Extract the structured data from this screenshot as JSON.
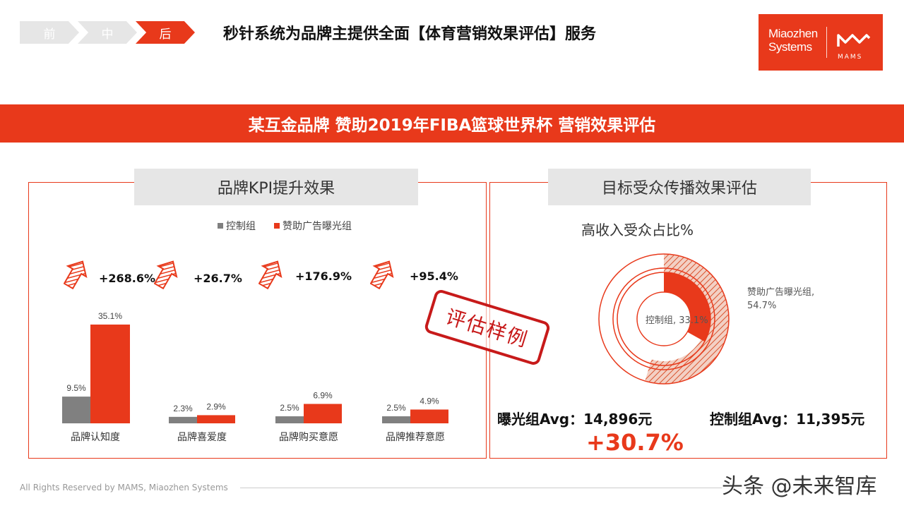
{
  "breadcrumb": [
    "前",
    "中",
    "后"
  ],
  "page_title": "秒针系统为品牌主提供全面【体育营销效果评估】服务",
  "logo": {
    "line1": "Miaozhen",
    "line2": "Systems",
    "mark": "MAMS"
  },
  "banner": "某互金品牌  赞助2019年FIBA篮球世界杯  营销效果评估",
  "left_panel": {
    "title": "品牌KPI提升效果"
  },
  "right_panel": {
    "title": "目标受众传播效果评估"
  },
  "stamp": "评估样例",
  "colors": {
    "accent": "#e8391b",
    "control": "#808080"
  },
  "chart_data": [
    {
      "type": "bar",
      "categories": [
        "品牌认知度",
        "品牌喜爱度",
        "品牌购买意愿",
        "品牌推荐意愿"
      ],
      "series": [
        {
          "name": "控制组",
          "values": [
            9.5,
            2.3,
            2.5,
            2.5
          ],
          "labels": [
            "9.5%",
            "2.3%",
            "2.5%",
            "2.5%"
          ],
          "color": "#808080"
        },
        {
          "name": "赞助广告曝光组",
          "values": [
            35.1,
            2.9,
            6.9,
            4.9
          ],
          "labels": [
            "35.1%",
            "2.9%",
            "6.9%",
            "4.9%"
          ],
          "color": "#e8391b"
        }
      ],
      "uplift": [
        "+268.6%",
        "+26.7%",
        "+176.9%",
        "+95.4%"
      ],
      "ylim": [
        0,
        35.1
      ],
      "legend": "top"
    },
    {
      "type": "pie",
      "title": "高收入受众占比%",
      "series": [
        {
          "name": "赞助广告曝光组",
          "value": 54.7,
          "label": "赞助广告曝光组,\n54.7%"
        },
        {
          "name": "控制组",
          "value": 33.1,
          "label": "控制组, 33.1%"
        }
      ]
    }
  ],
  "avg": {
    "exposed": "曝光组Avg：14,896元",
    "control": "控制组Avg：11,395元",
    "delta": "+30.7%"
  },
  "footer": "All Rights Reserved by MAMS, Miaozhen Systems",
  "watermark": "头条 @未来智库"
}
